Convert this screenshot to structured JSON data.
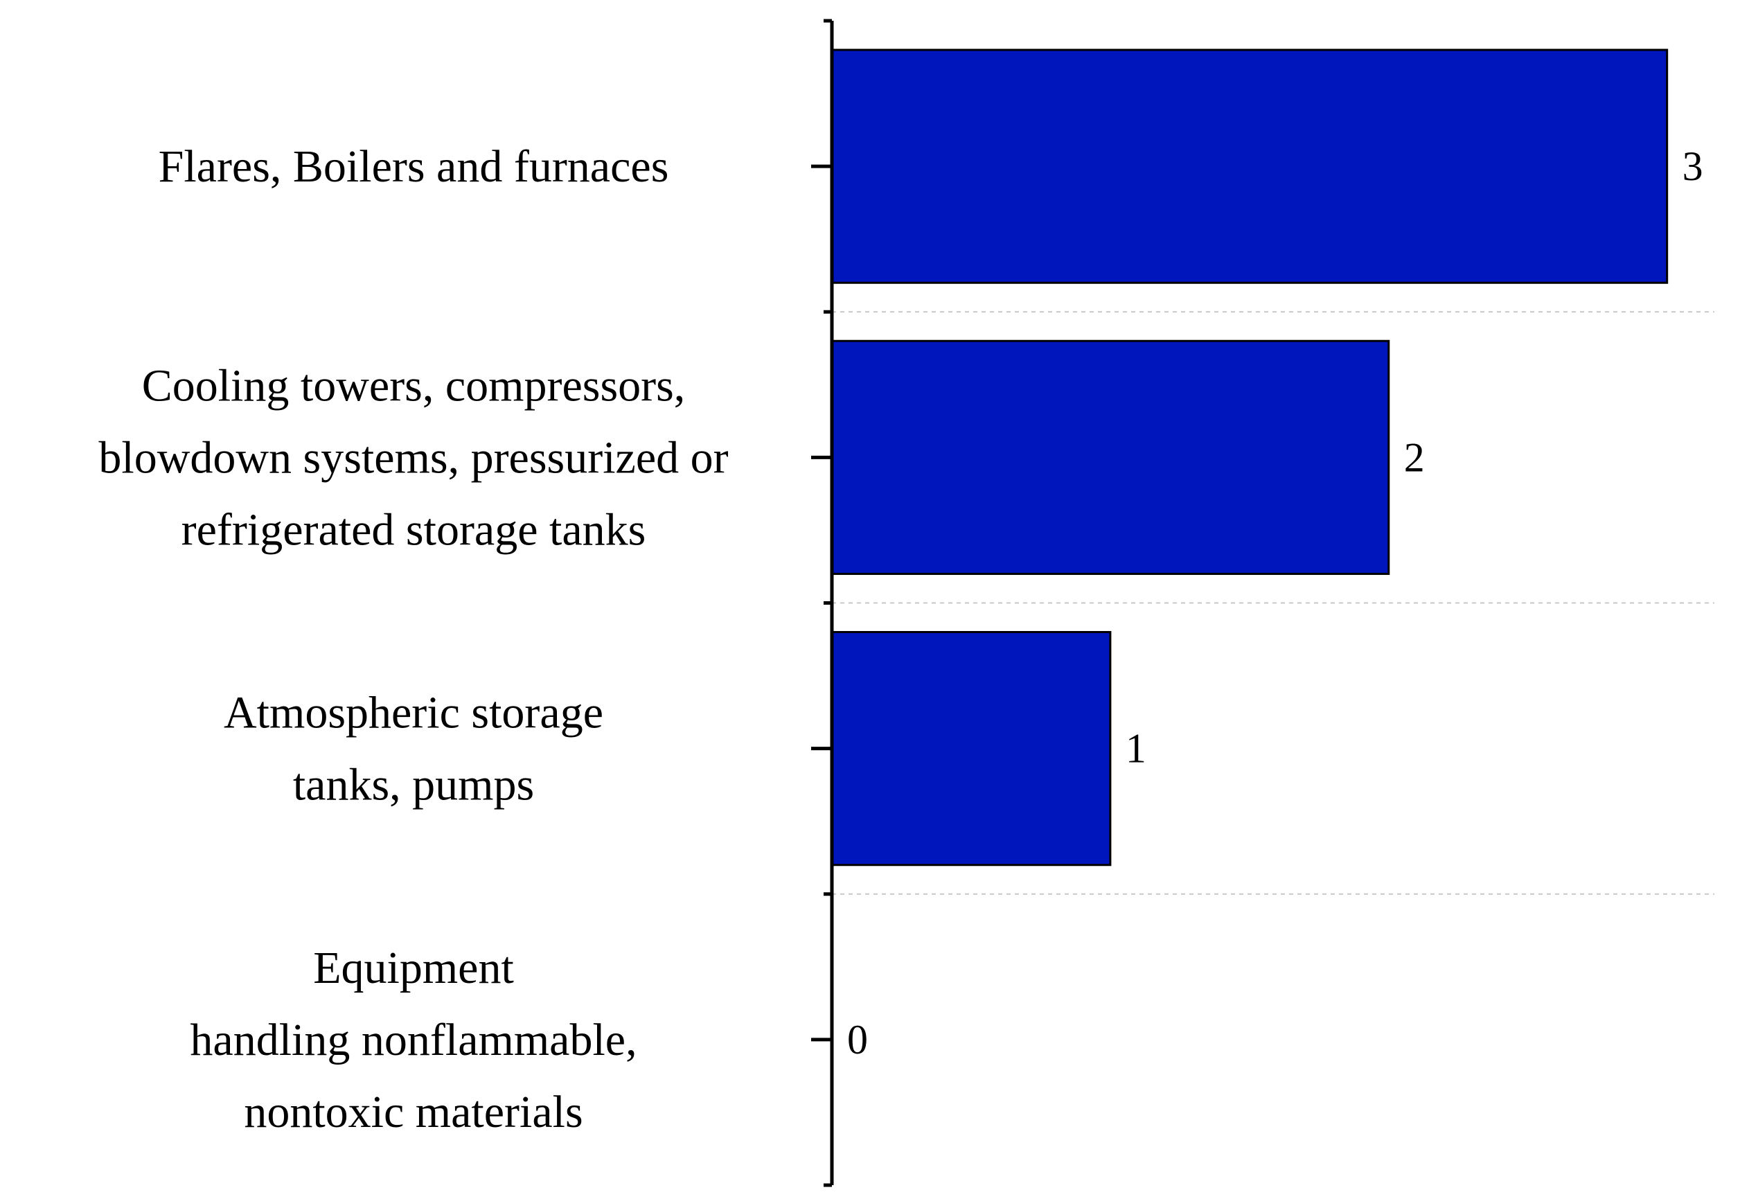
{
  "chart_data": {
    "type": "bar",
    "orientation": "horizontal",
    "title": "",
    "xlabel": "",
    "ylabel": "",
    "xlim": [
      0,
      3.17
    ],
    "categories": [
      [
        "Flares, Boilers and furnaces"
      ],
      [
        "Cooling towers, compressors,",
        "blowdown systems, pressurized or",
        "refrigerated storage tanks"
      ],
      [
        "Atmospheric storage",
        "tanks, pumps"
      ],
      [
        "Equipment",
        "handling nonflammable,",
        "nontoxic materials"
      ]
    ],
    "values": [
      3,
      2,
      1,
      0
    ],
    "value_labels": [
      "3",
      "2",
      "1",
      "0"
    ],
    "bar_color": "#0016bd",
    "bar_edge_color": "#000000",
    "grid": "dotted horizontal separators between categories",
    "legend": "none"
  }
}
